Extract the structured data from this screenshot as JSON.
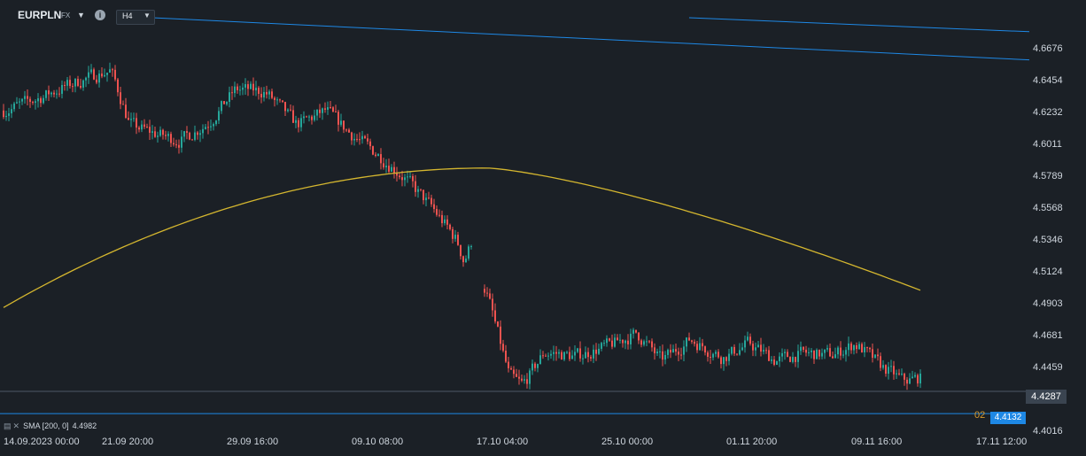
{
  "header": {
    "symbol": "EURPLN",
    "market": "FX",
    "timeframe": "H4",
    "dropdown_glyph": "▼",
    "info_glyph": "i"
  },
  "indicator": {
    "icon": "bars-icon",
    "name": "SMA",
    "params": "[200, 0]",
    "value": "4.4982",
    "close_glyph": "✕",
    "color": "#d4b62f"
  },
  "price_labels": {
    "current": "4.4287",
    "level": "4.4132",
    "level_prefix": "02"
  },
  "colors": {
    "background": "#1b2026",
    "up": "#26a69a",
    "down": "#ef5350",
    "trendline": "#1e88e5",
    "sma": "#d4b62f"
  },
  "chart_data": {
    "type": "candlestick",
    "symbol": "EURPLN",
    "timeframe": "H4",
    "y_ticks": [
      "4.6676",
      "4.6454",
      "4.6232",
      "4.6011",
      "4.5789",
      "4.5568",
      "4.5346",
      "4.5124",
      "4.4903",
      "4.4681",
      "4.4459",
      "4.4016"
    ],
    "ylim": [
      4.399,
      4.689
    ],
    "x_ticks": [
      "14.09.2023  00:00",
      "21.09  20:00",
      "29.09  16:00",
      "09.10  08:00",
      "17.10  04:00",
      "25.10  00:00",
      "01.11  20:00",
      "09.11  16:00",
      "17.11  12:00"
    ],
    "x_tick_index": [
      0,
      47,
      94,
      141,
      188,
      235,
      282,
      329,
      376
    ],
    "segments": [
      {
        "start": 0,
        "end": 176,
        "kp": [
          [
            0,
            4.624
          ],
          [
            12,
            4.632
          ],
          [
            22,
            4.64
          ],
          [
            33,
            4.648
          ],
          [
            40,
            4.652
          ],
          [
            47,
            4.614
          ],
          [
            58,
            4.607
          ],
          [
            66,
            4.603
          ],
          [
            77,
            4.616
          ],
          [
            87,
            4.639
          ],
          [
            98,
            4.637
          ],
          [
            110,
            4.614
          ],
          [
            121,
            4.624
          ],
          [
            130,
            4.608
          ],
          [
            140,
            4.594
          ],
          [
            150,
            4.578
          ],
          [
            160,
            4.558
          ],
          [
            170,
            4.534
          ],
          [
            173,
            4.518
          ],
          [
            176,
            4.535
          ]
        ]
      },
      {
        "start": 181,
        "end": 345,
        "kp": [
          [
            181,
            4.5
          ],
          [
            187,
            4.458
          ],
          [
            190,
            4.438
          ],
          [
            195,
            4.433
          ],
          [
            203,
            4.456
          ],
          [
            215,
            4.453
          ],
          [
            228,
            4.461
          ],
          [
            238,
            4.469
          ],
          [
            247,
            4.45
          ],
          [
            258,
            4.465
          ],
          [
            270,
            4.452
          ],
          [
            280,
            4.462
          ],
          [
            290,
            4.45
          ],
          [
            300,
            4.455
          ],
          [
            312,
            4.454
          ],
          [
            320,
            4.462
          ],
          [
            330,
            4.446
          ],
          [
            338,
            4.436
          ],
          [
            345,
            4.438
          ]
        ]
      }
    ],
    "sma": {
      "name": "SMA [200, 0]",
      "value": 4.4982,
      "x_start": 0,
      "x_end": 345,
      "start": 4.487,
      "peak": 4.584,
      "peak_x": 182,
      "end": 4.499
    },
    "trendlines": [
      {
        "x": [
          56,
          386
        ],
        "y": [
          4.6885,
          4.6592
        ]
      },
      {
        "x": [
          258,
          386
        ],
        "y": [
          4.6885,
          4.6788
        ]
      }
    ],
    "hlines": [
      {
        "y": 4.4287,
        "label": "4.4287"
      },
      {
        "y": 4.4132,
        "label": "4.4132"
      }
    ],
    "grid": false
  }
}
